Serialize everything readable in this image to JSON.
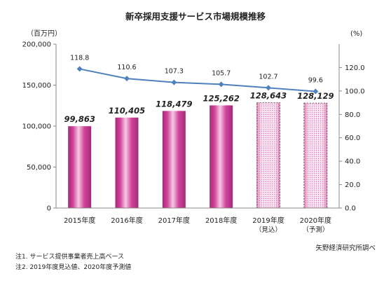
{
  "chart_data": {
    "type": "bar",
    "title": "新卒採用支援サービス市場規模推移",
    "left_axis_unit": "（百万円）",
    "right_axis_unit": "(%)",
    "categories": [
      [
        "2015年度"
      ],
      [
        "2016年度"
      ],
      [
        "2017年度"
      ],
      [
        "2018年度"
      ],
      [
        "2019年度",
        "（見込）"
      ],
      [
        "2020年度",
        "（予測）"
      ]
    ],
    "series": [
      {
        "type": "bar",
        "axis": "left",
        "values": [
          99863,
          110405,
          118479,
          125262,
          128643,
          128129
        ],
        "labels": [
          "99,863",
          "110,405",
          "118,479",
          "125,262",
          "128,643",
          "128,129"
        ],
        "styles": [
          "actual",
          "actual",
          "actual",
          "actual",
          "estimate",
          "forecast"
        ]
      },
      {
        "type": "line",
        "axis": "right",
        "values": [
          118.8,
          110.6,
          107.3,
          105.7,
          102.7,
          99.6
        ],
        "labels": [
          "118.8",
          "110.6",
          "107.3",
          "105.7",
          "102.7",
          "99.6"
        ]
      }
    ],
    "left_axis": {
      "min": 0,
      "max": 200000,
      "step": 50000,
      "tick_labels": [
        "0",
        "50,000",
        "100,000",
        "150,000",
        "200,000"
      ]
    },
    "right_axis": {
      "min": 0,
      "max": 140,
      "step": 20,
      "tick_labels": [
        "0.0",
        "20.0",
        "40.0",
        "60.0",
        "80.0",
        "100.0",
        "120.0"
      ]
    },
    "grid": false,
    "colors": {
      "bar": "#d1459b",
      "bar_highlight": "#f7c9e4",
      "line": "#4f81bd",
      "axis": "#888888"
    }
  },
  "notes": [
    "注1. サービス提供事業者売上高ベース",
    "注2. 2019年度見込値、2020年度予測値"
  ],
  "source": "矢野経済研究所調べ"
}
